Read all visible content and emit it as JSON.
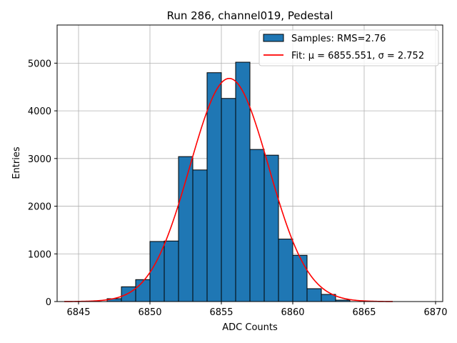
{
  "chart_data": {
    "type": "histogram",
    "title": "Run 286, channel019, Pedestal",
    "xlabel": "ADC Counts",
    "ylabel": "Entries",
    "xlim": [
      6843.5,
      6870.5
    ],
    "ylim": [
      0,
      5800
    ],
    "xticks": [
      6845,
      6850,
      6855,
      6860,
      6865,
      6870
    ],
    "yticks": [
      0,
      1000,
      2000,
      3000,
      4000,
      5000
    ],
    "grid": true,
    "legend_position": "top-right",
    "bins": [
      {
        "x0": 6847,
        "x1": 6848,
        "count": 60
      },
      {
        "x0": 6848,
        "x1": 6849,
        "count": 310
      },
      {
        "x0": 6849,
        "x1": 6850,
        "count": 460
      },
      {
        "x0": 6850,
        "x1": 6851,
        "count": 1260
      },
      {
        "x0": 6851,
        "x1": 6852,
        "count": 1270
      },
      {
        "x0": 6852,
        "x1": 6853,
        "count": 3040
      },
      {
        "x0": 6853,
        "x1": 6854,
        "count": 2760
      },
      {
        "x0": 6854,
        "x1": 6855,
        "count": 4800
      },
      {
        "x0": 6855,
        "x1": 6856,
        "count": 4260
      },
      {
        "x0": 6856,
        "x1": 6857,
        "count": 5020
      },
      {
        "x0": 6857,
        "x1": 6858,
        "count": 3190
      },
      {
        "x0": 6858,
        "x1": 6859,
        "count": 3070
      },
      {
        "x0": 6859,
        "x1": 6860,
        "count": 1310
      },
      {
        "x0": 6860,
        "x1": 6861,
        "count": 970
      },
      {
        "x0": 6861,
        "x1": 6862,
        "count": 270
      },
      {
        "x0": 6862,
        "x1": 6863,
        "count": 150
      },
      {
        "x0": 6863,
        "x1": 6864,
        "count": 30
      }
    ],
    "fit": {
      "mu": 6855.551,
      "sigma": 2.752,
      "amplitude": 4680,
      "x_range": [
        6844,
        6867
      ]
    },
    "legend": [
      {
        "label": "Samples: RMS=2.76",
        "kind": "patch",
        "color": "#1f77b4"
      },
      {
        "label": "Fit: μ = 6855.551, σ = 2.752",
        "kind": "line",
        "color": "#ff0000"
      }
    ]
  }
}
